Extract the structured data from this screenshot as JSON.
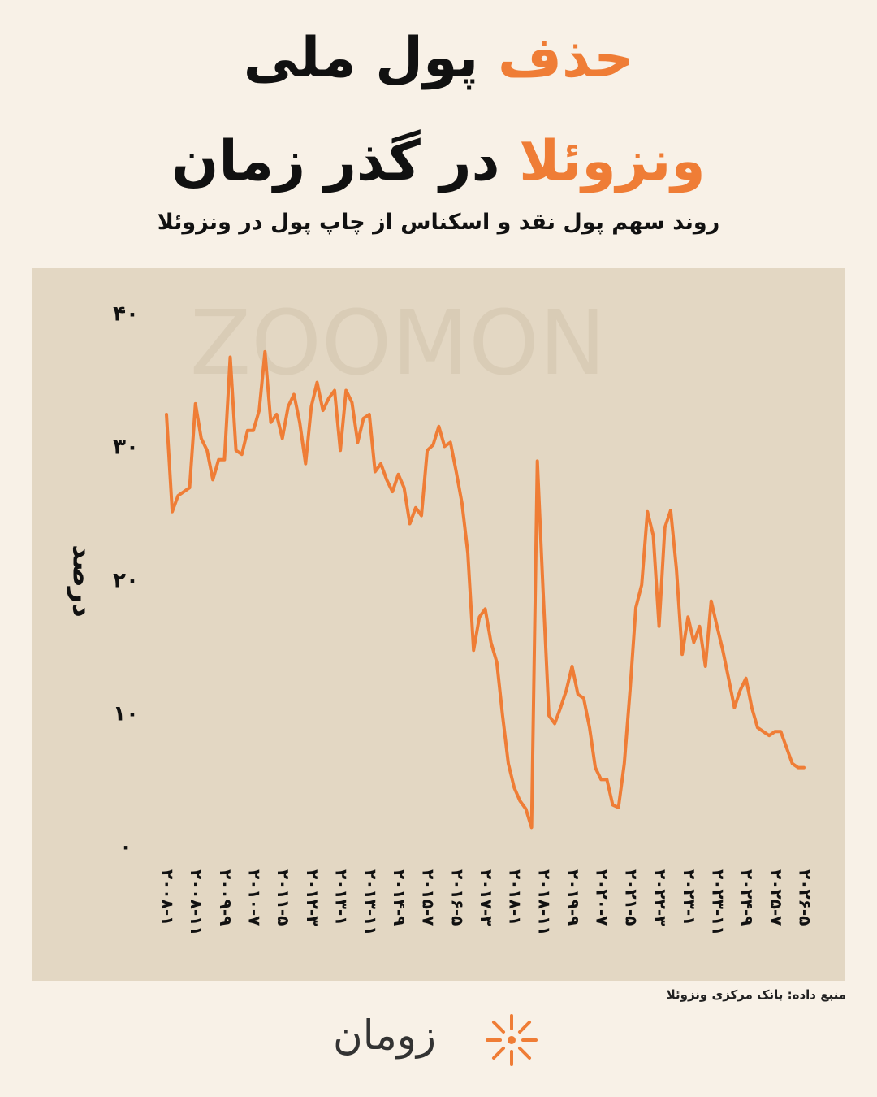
{
  "chart_data": {
    "type": "line",
    "title_line1": {
      "highlight": "حذف",
      "text": "پول ملی"
    },
    "title_line2": {
      "highlight": "ونزوئلا",
      "text": "در گذر زمان"
    },
    "subtitle": "روند سهم پول نقد و اسکناس از چاپ پول در ونزوئلا",
    "y_label": "درصد",
    "watermark": "ZOOMON",
    "source": "منبع داده: بانک مرکزی ونزوئلا",
    "logo": "زومان",
    "ylim": [
      0,
      40
    ],
    "yticks": [
      {
        "value": 0,
        "label": "۰"
      },
      {
        "value": 10,
        "label": "۱۰"
      },
      {
        "value": 20,
        "label": "۲۰"
      },
      {
        "value": 30,
        "label": "۳۰"
      },
      {
        "value": 40,
        "label": "۴۰"
      }
    ],
    "grid": false,
    "categories": [
      "۲۰۰۸-۱",
      null,
      null,
      null,
      null,
      "۲۰۰۸-۱۱",
      null,
      null,
      null,
      null,
      "۲۰۰۹-۹",
      null,
      null,
      null,
      null,
      "۲۰۱۰-۷",
      null,
      null,
      null,
      null,
      "۲۰۱۱-۵",
      null,
      null,
      null,
      null,
      "۲۰۱۲-۳",
      null,
      null,
      null,
      null,
      "۲۰۱۳-۱",
      null,
      null,
      null,
      null,
      "۲۰۱۳-۱۱",
      null,
      null,
      null,
      null,
      "۲۰۱۴-۹",
      null,
      null,
      null,
      null,
      "۲۰۱۵-۷",
      null,
      null,
      null,
      null,
      "۲۰۱۶-۵",
      null,
      null,
      null,
      null,
      "۲۰۱۷-۳",
      null,
      null,
      null,
      null,
      "۲۰۱۸-۱",
      null,
      null,
      null,
      null,
      "۲۰۱۸-۱۱",
      null,
      null,
      null,
      null,
      "۲۰۱۹-۹",
      null,
      null,
      null,
      null,
      "۲۰۲۰-۷",
      null,
      null,
      null,
      null,
      "۲۰۲۱-۵",
      null,
      null,
      null,
      null,
      "۲۰۲۲-۳",
      null,
      null,
      null,
      null,
      "۲۰۲۳-۱",
      null,
      null,
      null,
      null,
      "۲۰۲۳-۱۱",
      null,
      null,
      null,
      null,
      "۲۰۲۴-۹",
      null,
      null,
      null,
      null,
      "۲۰۲۵-۷",
      null,
      null,
      null,
      null,
      "۲۰۲۶-۵"
    ],
    "series": [
      {
        "color": "#ef7d36",
        "values": [
          32.5,
          25.2,
          26.4,
          26.7,
          27.0,
          33.3,
          30.7,
          29.8,
          27.6,
          29.1,
          29.1,
          36.8,
          29.8,
          29.5,
          31.3,
          31.3,
          32.8,
          37.2,
          31.9,
          32.5,
          30.7,
          33.1,
          34.0,
          31.9,
          28.8,
          33.1,
          34.9,
          32.8,
          33.7,
          34.3,
          29.8,
          34.3,
          33.4,
          30.4,
          32.2,
          32.5,
          28.2,
          28.8,
          27.6,
          26.7,
          28.0,
          27.0,
          24.3,
          25.5,
          24.9,
          29.8,
          30.2,
          31.6,
          30.1,
          30.4,
          28.2,
          25.8,
          22.1,
          14.8,
          17.3,
          17.9,
          15.4,
          13.9,
          9.9,
          6.3,
          4.5,
          3.5,
          2.9,
          1.5,
          29.0,
          19.1,
          9.9,
          9.3,
          10.5,
          11.8,
          13.6,
          11.5,
          11.2,
          9.0,
          6.0,
          5.1,
          5.1,
          3.2,
          3.0,
          6.3,
          11.8,
          18.0,
          19.7,
          25.2,
          23.4,
          16.6,
          24.0,
          25.3,
          20.9,
          14.5,
          17.3,
          15.4,
          16.6,
          13.6,
          18.5,
          16.6,
          14.8,
          12.7,
          10.5,
          11.8,
          12.7,
          10.5,
          9.0,
          8.7,
          8.4,
          8.7,
          8.7,
          7.5,
          6.3,
          6.0,
          6.0
        ]
      }
    ]
  }
}
